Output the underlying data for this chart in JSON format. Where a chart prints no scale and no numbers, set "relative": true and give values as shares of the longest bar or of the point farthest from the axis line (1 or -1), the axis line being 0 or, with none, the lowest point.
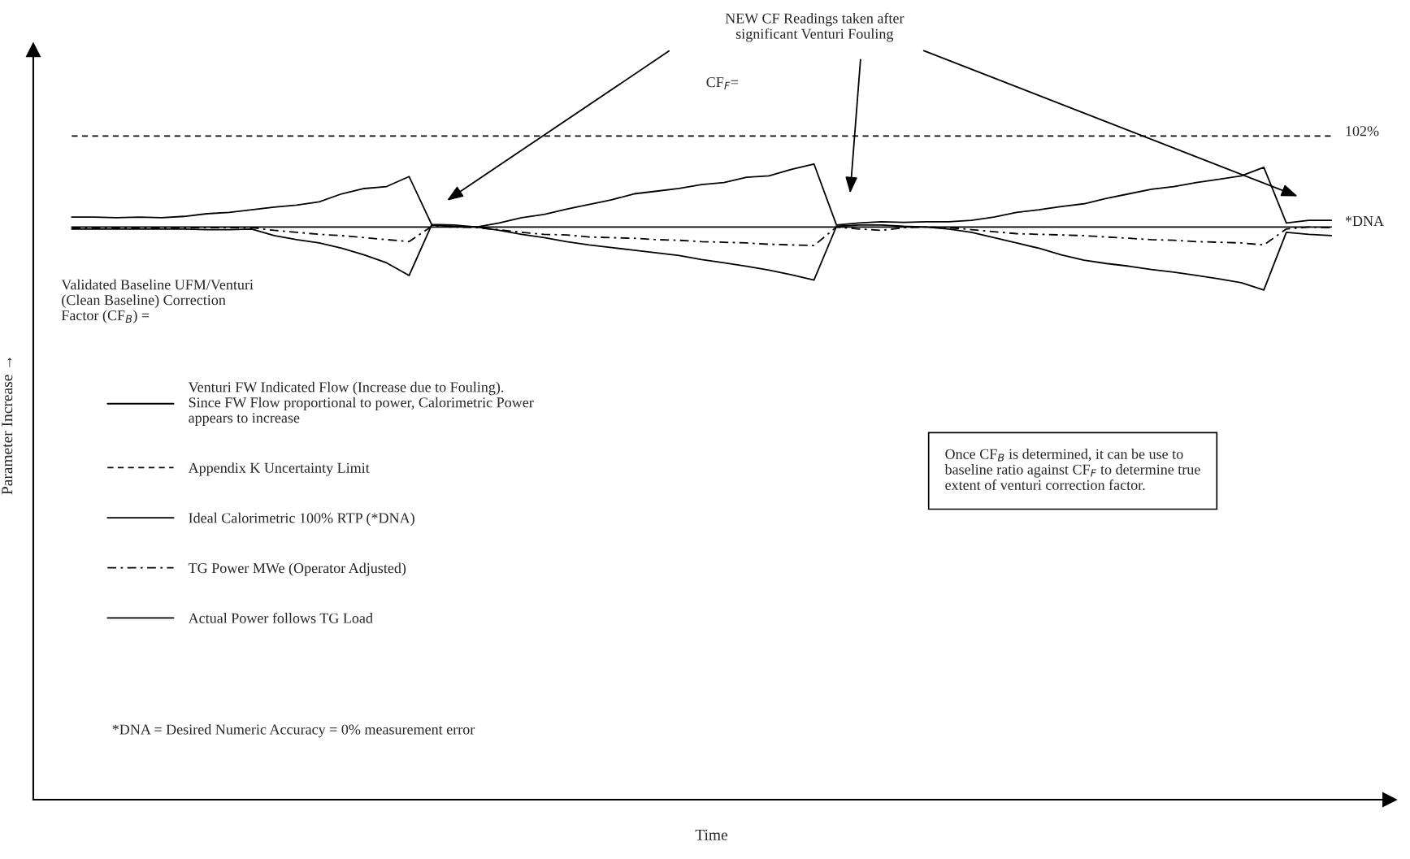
{
  "chart_data": {
    "type": "line",
    "relative": true,
    "tick_labels": false,
    "legend": "left",
    "xlabel": "Time",
    "ylabel": "Parameter Increase →",
    "categories": [
      null,
      null,
      null,
      null,
      null,
      null,
      null,
      null,
      null,
      null,
      null,
      null,
      null,
      null,
      null,
      null,
      null,
      null,
      null,
      null,
      null,
      null,
      null,
      null,
      null,
      null,
      null,
      null,
      null,
      null,
      null,
      null,
      null,
      null,
      null,
      null,
      null,
      null,
      null,
      null,
      null,
      null,
      null,
      null,
      null,
      null,
      null,
      null,
      null,
      null,
      null,
      null,
      null,
      null,
      null,
      null,
      null
    ],
    "series": [
      {
        "name": "Venturi FW Indicated Flow (Increase due to Fouling).\nSince FW Flow proportional to power, Calorimetric Power\nappears to increase",
        "color": "#000000",
        "line_style": "solid",
        "values": [
          0.878,
          0.878,
          0.877,
          0.878,
          0.877,
          0.879,
          0.883,
          0.885,
          0.889,
          0.893,
          0.896,
          0.901,
          0.913,
          0.921,
          0.924,
          0.939,
          0.867,
          0.866,
          0.863,
          0.869,
          0.877,
          0.882,
          0.89,
          0.897,
          0.904,
          0.913,
          0.917,
          0.921,
          0.927,
          0.93,
          0.938,
          0.94,
          0.95,
          0.958,
          0.866,
          0.869,
          0.871,
          0.87,
          0.871,
          0.871,
          0.873,
          0.878,
          0.885,
          0.889,
          0.894,
          0.898,
          0.906,
          0.913,
          0.92,
          0.924,
          0.93,
          0.935,
          0.94,
          0.953,
          0.869,
          0.873,
          0.873
        ]
      },
      {
        "name": "Appendix K Uncertainty Limit",
        "color": "#000000",
        "line_style": "dashed",
        "values": [
          1,
          1,
          1,
          1,
          1,
          1,
          1,
          1,
          1,
          1,
          1,
          1,
          1,
          1,
          1,
          1,
          1,
          1,
          1,
          1,
          1,
          1,
          1,
          1,
          1,
          1,
          1,
          1,
          1,
          1,
          1,
          1,
          1,
          1,
          1,
          1,
          1,
          1,
          1,
          1,
          1,
          1,
          1,
          1,
          1,
          1,
          1,
          1,
          1,
          1,
          1,
          1,
          1,
          1,
          1,
          1,
          1
        ]
      },
      {
        "name": "Ideal Calorimetric 100% RTP (*DNA)",
        "color": "#000000",
        "line_style": "solid",
        "values": [
          0.863,
          0.863,
          0.863,
          0.863,
          0.863,
          0.863,
          0.863,
          0.863,
          0.863,
          0.863,
          0.863,
          0.863,
          0.863,
          0.863,
          0.863,
          0.863,
          0.863,
          0.863,
          0.863,
          0.863,
          0.863,
          0.863,
          0.863,
          0.863,
          0.863,
          0.863,
          0.863,
          0.863,
          0.863,
          0.863,
          0.863,
          0.863,
          0.863,
          0.863,
          0.863,
          0.863,
          0.863,
          0.863,
          0.863,
          0.863,
          0.863,
          0.863,
          0.863,
          0.863,
          0.863,
          0.863,
          0.863,
          0.863,
          0.863,
          0.863,
          0.863,
          0.863,
          0.863,
          0.863,
          0.863,
          0.863,
          0.863
        ]
      },
      {
        "name": "TG Power MWe (Operator Adjusted)",
        "color": "#000000",
        "line_style": "dashdot",
        "values": [
          0.862,
          0.862,
          0.862,
          0.862,
          0.862,
          0.862,
          0.862,
          0.862,
          0.862,
          0.858,
          0.855,
          0.852,
          0.85,
          0.847,
          0.844,
          0.841,
          0.864,
          0.863,
          0.862,
          0.859,
          0.855,
          0.852,
          0.851,
          0.848,
          0.847,
          0.846,
          0.844,
          0.843,
          0.841,
          0.84,
          0.839,
          0.837,
          0.836,
          0.835,
          0.863,
          0.86,
          0.858,
          0.862,
          0.863,
          0.862,
          0.859,
          0.856,
          0.853,
          0.852,
          0.851,
          0.85,
          0.848,
          0.846,
          0.844,
          0.843,
          0.841,
          0.84,
          0.839,
          0.836,
          0.86,
          0.863,
          0.862
        ]
      },
      {
        "name": "Actual Power follows TG Load",
        "color": "#000000",
        "line_style": "solid",
        "values": [
          0.86,
          0.86,
          0.86,
          0.86,
          0.86,
          0.86,
          0.859,
          0.859,
          0.86,
          0.85,
          0.844,
          0.839,
          0.831,
          0.821,
          0.809,
          0.79,
          0.866,
          0.864,
          0.863,
          0.858,
          0.852,
          0.847,
          0.841,
          0.836,
          0.832,
          0.828,
          0.824,
          0.82,
          0.814,
          0.809,
          0.804,
          0.798,
          0.791,
          0.783,
          0.864,
          0.866,
          0.866,
          0.864,
          0.863,
          0.86,
          0.855,
          0.847,
          0.839,
          0.831,
          0.821,
          0.813,
          0.808,
          0.804,
          0.799,
          0.795,
          0.79,
          0.785,
          0.779,
          0.768,
          0.855,
          0.852,
          0.85
        ]
      }
    ],
    "annotations": [
      "NEW CF Readings taken after\nsignificant Venturi Fouling",
      "CF$_{F}$=",
      "102%",
      "*DNA",
      "Validated Baseline UFM/Venturi\n(Clean Baseline) Correction\nFactor (CF$_{B}$) =",
      "Once CF$_{B}$ is determined, it can be use to\nbaseline ratio against CF$_{F}$ to determine true\nextent of venturi correction factor.",
      "*DNA = Desired Numeric Accuracy = 0% measurement error"
    ]
  }
}
